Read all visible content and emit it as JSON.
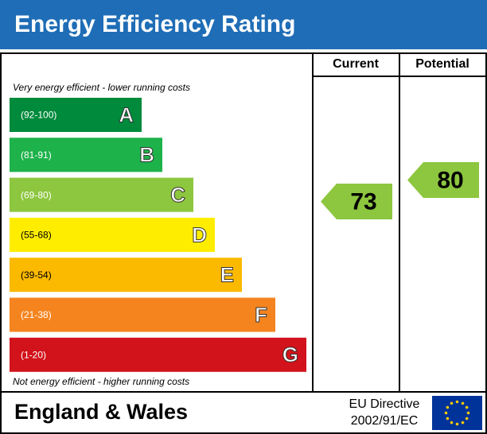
{
  "header": {
    "title": "Energy Efficiency Rating"
  },
  "columns": {
    "current": "Current",
    "potential": "Potential"
  },
  "top_note": "Very energy efficient - lower running costs",
  "bottom_note": "Not energy efficient - higher running costs",
  "bands": [
    {
      "range": "(92-100)",
      "letter": "A",
      "color": "#008a3c"
    },
    {
      "range": "(81-91)",
      "letter": "B",
      "color": "#1db24a"
    },
    {
      "range": "(69-80)",
      "letter": "C",
      "color": "#8dc63f"
    },
    {
      "range": "(55-68)",
      "letter": "D",
      "color": "#ffed00"
    },
    {
      "range": "(39-54)",
      "letter": "E",
      "color": "#fbb900"
    },
    {
      "range": "(21-38)",
      "letter": "F",
      "color": "#f5841f"
    },
    {
      "range": "(1-20)",
      "letter": "G",
      "color": "#d2131b"
    }
  ],
  "current": {
    "value": 73,
    "color": "#8dc63f"
  },
  "potential": {
    "value": 80,
    "color": "#8dc63f"
  },
  "footer": {
    "region": "England & Wales",
    "directive_line1": "EU Directive",
    "directive_line2": "2002/91/EC"
  }
}
